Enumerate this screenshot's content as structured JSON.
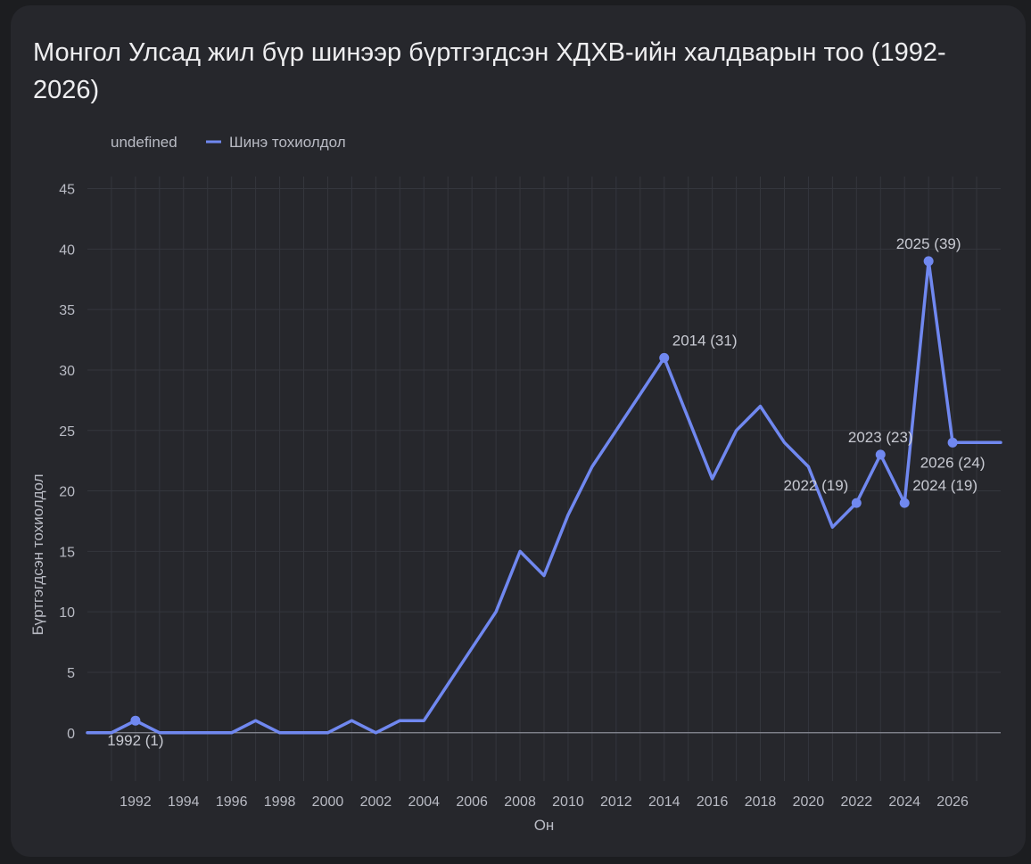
{
  "chart_data": {
    "type": "line",
    "title": "Монгол Улсад жил бүр шинээр бүртгэгдсэн ХДХВ-ийн халдварын тоо (1992-2026)",
    "xlabel": "Он",
    "ylabel": "Бүртгэгдсэн тохиолдол",
    "xlim": [
      1990,
      2028
    ],
    "ylim": [
      -4,
      46
    ],
    "x_ticks": [
      1992,
      1994,
      1996,
      1998,
      2000,
      2002,
      2004,
      2006,
      2008,
      2010,
      2012,
      2014,
      2016,
      2018,
      2020,
      2022,
      2024,
      2026
    ],
    "y_ticks": [
      0,
      5,
      10,
      15,
      20,
      25,
      30,
      35,
      40,
      45
    ],
    "grid": true,
    "legend": {
      "placement": "top-left",
      "entries": [
        "undefined",
        "Шинэ тохиолдол"
      ]
    },
    "series": [
      {
        "name": "Шинэ тохиолдол",
        "color": "#7088f0",
        "x": [
          1990,
          1991,
          1992,
          1993,
          1994,
          1995,
          1996,
          1997,
          1998,
          1999,
          2000,
          2001,
          2002,
          2003,
          2004,
          2005,
          2006,
          2007,
          2008,
          2009,
          2010,
          2011,
          2012,
          2013,
          2014,
          2015,
          2016,
          2017,
          2018,
          2019,
          2020,
          2021,
          2022,
          2023,
          2024,
          2025,
          2026,
          2027,
          2028
        ],
        "y": [
          0,
          0,
          1,
          0,
          0,
          0,
          0,
          1,
          0,
          0,
          0,
          1,
          0,
          1,
          1,
          4,
          7,
          10,
          15,
          13,
          18,
          22,
          25,
          28,
          31,
          26,
          21,
          25,
          27,
          24,
          22,
          17,
          19,
          23,
          19,
          39,
          24,
          24,
          24
        ]
      }
    ],
    "annotations": [
      {
        "x": 1992,
        "y": 1,
        "text": "1992 (1)",
        "pos": "below"
      },
      {
        "x": 2014,
        "y": 31,
        "text": "2014 (31)",
        "pos": "above-right"
      },
      {
        "x": 2022,
        "y": 19,
        "text": "2022 (19)",
        "pos": "above-left"
      },
      {
        "x": 2023,
        "y": 23,
        "text": "2023 (23)",
        "pos": "above"
      },
      {
        "x": 2024,
        "y": 19,
        "text": "2024 (19)",
        "pos": "above-right"
      },
      {
        "x": 2025,
        "y": 39,
        "text": "2025 (39)",
        "pos": "above"
      },
      {
        "x": 2026,
        "y": 24,
        "text": "2026 (24)",
        "pos": "below"
      }
    ]
  }
}
